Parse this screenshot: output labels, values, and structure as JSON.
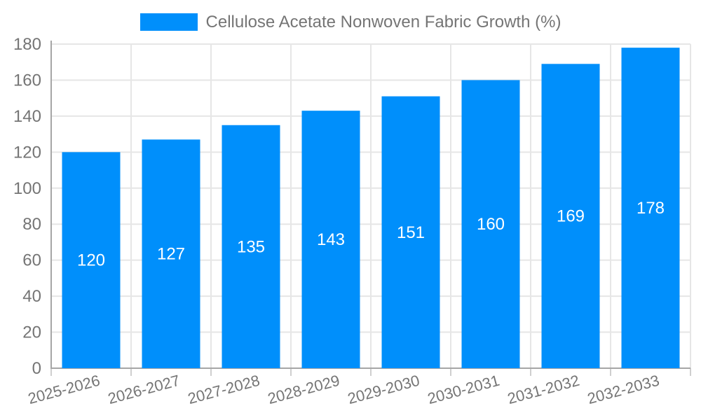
{
  "page": {
    "background_color": "#ffffff"
  },
  "legend": {
    "label": "Cellulose Acetate Nonwoven Fabric Growth (%)",
    "swatch_color": "#008FFB",
    "text_color": "#757575",
    "position": "top"
  },
  "chart_data": {
    "type": "bar",
    "title": "",
    "xlabel": "",
    "ylabel": "",
    "categories": [
      "2025-2026",
      "2026-2027",
      "2027-2028",
      "2028-2029",
      "2029-2030",
      "2030-2031",
      "2031-2032",
      "2032-2033"
    ],
    "series": [
      {
        "name": "Cellulose Acetate Nonwoven Fabric Growth (%)",
        "values": [
          120,
          127,
          135,
          143,
          151,
          160,
          169,
          178
        ],
        "color": "#008FFB"
      }
    ],
    "value_labels": {
      "visible": true,
      "position": "inside-center",
      "color": "#ffffff"
    },
    "ylim": [
      0,
      180
    ],
    "ytick_step": 20,
    "ytick_labels": [
      "0",
      "20",
      "40",
      "60",
      "80",
      "100",
      "120",
      "140",
      "160",
      "180"
    ],
    "grid": {
      "horizontal": true,
      "vertical": true,
      "color": "#e6e6e6"
    },
    "axis": {
      "line_color": "#a6a6a6",
      "tick_color": "#cfcfcf",
      "label_color": "#757575",
      "x_label_rotation_deg": -15
    },
    "legend_position": "top"
  }
}
